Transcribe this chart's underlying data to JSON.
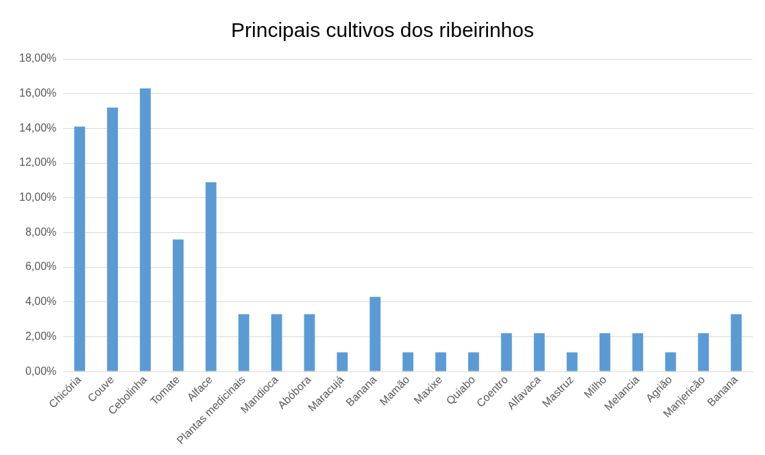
{
  "chart_data": {
    "type": "bar",
    "title": "Principais cultivos dos ribeirinhos",
    "categories": [
      "Chicória",
      "Couve",
      "Cebolinha",
      "Tomate",
      "Alface",
      "Plantas medicinais",
      "Mandioca",
      "Abóbora",
      "Maracujá",
      "Banana",
      "Mamão",
      "Maxixe",
      "Quiabo",
      "Coentro",
      "Alfavaca",
      "Mastruz",
      "Milho",
      "Melancia",
      "Agrião",
      "Manjericão",
      "Banana"
    ],
    "values": [
      14.1,
      15.2,
      16.3,
      7.6,
      10.9,
      3.3,
      3.3,
      3.3,
      1.1,
      4.3,
      1.1,
      1.1,
      1.1,
      2.2,
      2.2,
      1.1,
      2.2,
      2.2,
      1.1,
      2.2,
      3.3
    ],
    "color": "#5b9bd5",
    "ylim": [
      0,
      18
    ],
    "yticks": [
      {
        "value": 0,
        "label": "0,00%"
      },
      {
        "value": 2,
        "label": "2,00%"
      },
      {
        "value": 4,
        "label": "4,00%"
      },
      {
        "value": 6,
        "label": "6,00%"
      },
      {
        "value": 8,
        "label": "8,00%"
      },
      {
        "value": 10,
        "label": "10,00%"
      },
      {
        "value": 12,
        "label": "12,00%"
      },
      {
        "value": 14,
        "label": "14,00%"
      },
      {
        "value": 16,
        "label": "16,00%"
      },
      {
        "value": 18,
        "label": "18,00%"
      }
    ],
    "grid": "y"
  }
}
